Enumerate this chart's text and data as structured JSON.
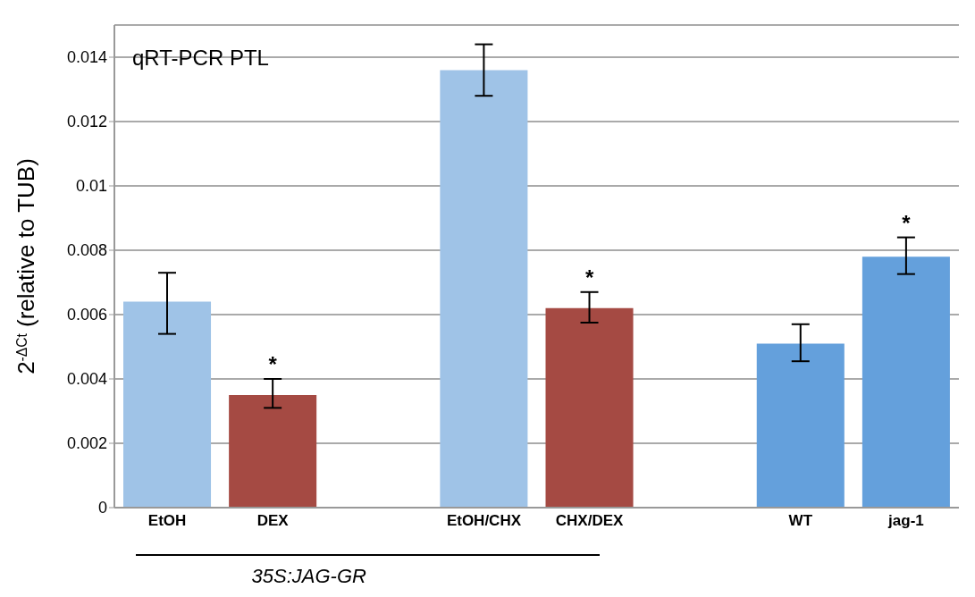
{
  "chart_data": {
    "type": "bar",
    "title": "qRT-PCR PTL",
    "ylabel": "2$^{-ΔCt}$ (relative to TUB)",
    "categories": [
      "EtOH",
      "DEX",
      null,
      "EtOH/CHX",
      "CHX/DEX",
      null,
      "WT",
      "jag-1"
    ],
    "values": [
      0.0064,
      0.0035,
      null,
      0.0136,
      0.0062,
      null,
      0.0051,
      0.0078
    ],
    "colors": [
      "#9fc3e7",
      "#a54a43",
      "#9fc3e7",
      "#9fc3e7",
      "#a54a43",
      "#64a0dc",
      "#64a0dc",
      "#64a0dc"
    ],
    "errors": [
      [
        0.0054,
        0.0073
      ],
      [
        0.0031,
        0.004
      ],
      null,
      [
        0.0128,
        0.0144
      ],
      [
        0.00575,
        0.0067
      ],
      null,
      [
        0.00455,
        0.0057
      ],
      [
        0.00726,
        0.0084
      ]
    ],
    "ylim": [
      0,
      0.015
    ],
    "yticks": [
      0,
      0.002,
      0.004,
      0.006,
      0.008,
      0.01,
      0.012,
      0.014
    ],
    "grid": "y",
    "annotations": [
      {
        "text": "*",
        "x": "DEX",
        "y": 0.004
      },
      {
        "text": "*",
        "x": "CHX/DEX",
        "y": 0.0067
      },
      {
        "text": "*",
        "x": "jag-1",
        "y": 0.0084
      },
      "35S:JAG-GR"
    ]
  }
}
